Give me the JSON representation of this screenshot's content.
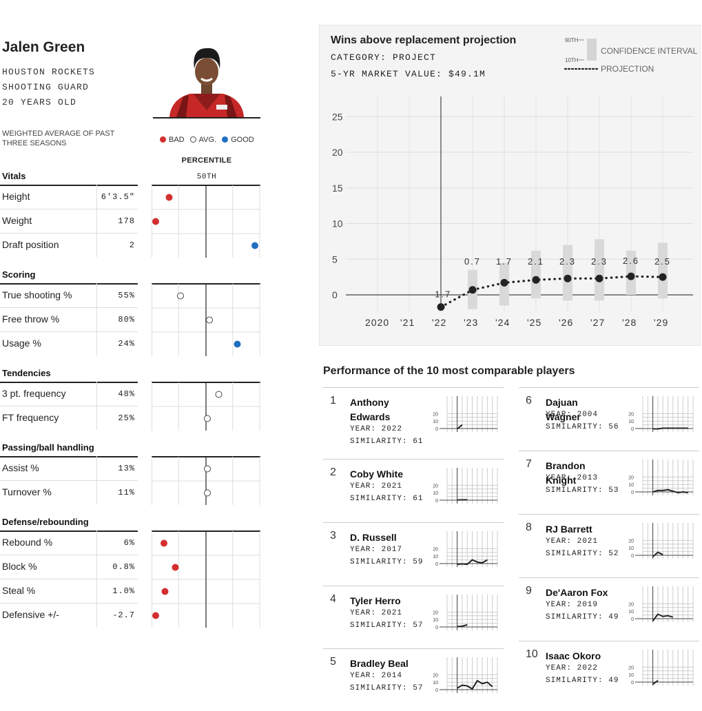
{
  "player": {
    "name": "Jalen Green",
    "team": "HOUSTON ROCKETS",
    "position": "SHOOTING GUARD",
    "age": "20 YEARS OLD"
  },
  "weighted_note": "WEIGHTED AVERAGE OF PAST THREE SEASONS",
  "legend": {
    "bad": "BAD",
    "avg": "AVG.",
    "good": "GOOD"
  },
  "colors": {
    "bad": "#d32f2f",
    "good": "#1f6fc1",
    "avg": "#ffffff",
    "ink": "#222222"
  },
  "percentile_label": "PERCENTILE",
  "fiftieth_label": "50TH",
  "stat_sections": [
    {
      "title": "Vitals",
      "rows": [
        {
          "label": "Height",
          "value": "6'3.5\"",
          "percentile": 15,
          "rating": "bad"
        },
        {
          "label": "Weight",
          "value": "178",
          "percentile": 2,
          "rating": "bad"
        },
        {
          "label": "Draft position",
          "value": "2",
          "percentile": 98,
          "rating": "good"
        }
      ]
    },
    {
      "title": "Scoring",
      "rows": [
        {
          "label": "True shooting %",
          "value": "55%",
          "percentile": 26,
          "rating": "avg"
        },
        {
          "label": "Free throw %",
          "value": "80%",
          "percentile": 54,
          "rating": "avg"
        },
        {
          "label": "Usage %",
          "value": "24%",
          "percentile": 81,
          "rating": "good"
        }
      ]
    },
    {
      "title": "Tendencies",
      "rows": [
        {
          "label": "3 pt. frequency",
          "value": "48%",
          "percentile": 63,
          "rating": "avg"
        },
        {
          "label": "FT frequency",
          "value": "25%",
          "percentile": 52,
          "rating": "avg"
        }
      ]
    },
    {
      "title": "Passing/ball handling",
      "rows": [
        {
          "label": "Assist %",
          "value": "13%",
          "percentile": 52,
          "rating": "avg"
        },
        {
          "label": "Turnover %",
          "value": "11%",
          "percentile": 52,
          "rating": "avg"
        }
      ]
    },
    {
      "title": "Defense/rebounding",
      "rows": [
        {
          "label": "Rebound %",
          "value": "6%",
          "percentile": 10,
          "rating": "bad"
        },
        {
          "label": "Block %",
          "value": "0.8%",
          "percentile": 21,
          "rating": "bad"
        },
        {
          "label": "Steal %",
          "value": "1.0%",
          "percentile": 11,
          "rating": "bad"
        },
        {
          "label": "Defensive +/-",
          "value": "-2.7",
          "percentile": 2,
          "rating": "bad"
        }
      ]
    }
  ],
  "wins": {
    "title": "Wins above replacement projection",
    "category": "CATEGORY: PROJECT",
    "market_value": "5-YR MARKET VALUE: $49.1M",
    "legend_90": "90TH",
    "legend_10": "10TH",
    "legend_ci": "CONFIDENCE INTERVAL",
    "legend_proj": "PROJECTION"
  },
  "chart_data": {
    "type": "line",
    "title": "Wins above replacement projection",
    "x": [
      "2020",
      "'21",
      "'22",
      "'23",
      "'24",
      "'25",
      "'26",
      "'27",
      "'28",
      "'29"
    ],
    "ylim": [
      -2,
      25
    ],
    "yticks": [
      0,
      5,
      10,
      15,
      20,
      25
    ],
    "grid": true,
    "series": [
      {
        "name": "PROJECTION",
        "points": [
          {
            "x": "'22",
            "y": -1.7,
            "label": "-1.7"
          },
          {
            "x": "'23",
            "y": 0.7,
            "label": "0.7"
          },
          {
            "x": "'24",
            "y": 1.7,
            "label": "1.7"
          },
          {
            "x": "'25",
            "y": 2.1,
            "label": "2.1"
          },
          {
            "x": "'26",
            "y": 2.3,
            "label": "2.3"
          },
          {
            "x": "'27",
            "y": 2.3,
            "label": "2.3"
          },
          {
            "x": "'28",
            "y": 2.6,
            "label": "2.6"
          },
          {
            "x": "'29",
            "y": 2.5,
            "label": "2.5"
          }
        ]
      }
    ],
    "confidence_interval": [
      {
        "x": "'23",
        "low": -2,
        "high": 3.5
      },
      {
        "x": "'24",
        "low": -1.5,
        "high": 4.5
      },
      {
        "x": "'25",
        "low": -0.5,
        "high": 6.2
      },
      {
        "x": "'26",
        "low": -0.8,
        "high": 7.0
      },
      {
        "x": "'27",
        "low": -0.8,
        "high": 7.8
      },
      {
        "x": "'28",
        "low": 0,
        "high": 6.2
      },
      {
        "x": "'29",
        "low": -0.5,
        "high": 7.3
      }
    ]
  },
  "comparables_title": "Performance of the 10 most comparable players",
  "comparables": [
    {
      "rank": "1",
      "name": "Anthony Edwards",
      "year": "YEAR: 2022",
      "similarity": "SIMILARITY: 61",
      "values": [
        -0.5,
        5
      ]
    },
    {
      "rank": "2",
      "name": "Coby White",
      "year": "YEAR: 2021",
      "similarity": "SIMILARITY: 61",
      "values": [
        0.3,
        0.5,
        0.6
      ]
    },
    {
      "rank": "3",
      "name": "D. Russell",
      "year": "YEAR: 2017",
      "similarity": "SIMILARITY: 59",
      "values": [
        -1,
        -0.5,
        -1,
        5,
        2,
        1,
        5
      ]
    },
    {
      "rank": "4",
      "name": "Tyler Herro",
      "year": "YEAR: 2021",
      "similarity": "SIMILARITY: 57",
      "values": [
        0.5,
        1,
        3
      ]
    },
    {
      "rank": "5",
      "name": "Bradley Beal",
      "year": "YEAR: 2014",
      "similarity": "SIMILARITY: 57",
      "values": [
        2,
        6,
        5,
        1,
        12,
        8,
        10,
        4
      ]
    },
    {
      "rank": "6",
      "name": "Dajuan Wagner",
      "year": "YEAR: 2004",
      "similarity": "SIMILARITY: 56",
      "values": [
        -0.5,
        -0.5,
        0.5,
        0.5,
        0.5,
        0.5,
        0.5,
        0.5
      ]
    },
    {
      "rank": "7",
      "name": "Brandon Knight",
      "year": "YEAR: 2013",
      "similarity": "SIMILARITY: 53",
      "values": [
        0,
        2,
        2,
        3,
        1,
        -1,
        0,
        -1
      ]
    },
    {
      "rank": "8",
      "name": "RJ Barrett",
      "year": "YEAR: 2021",
      "similarity": "SIMILARITY: 52",
      "values": [
        -2,
        4,
        1
      ]
    },
    {
      "rank": "9",
      "name": "De'Aaron Fox",
      "year": "YEAR: 2019",
      "similarity": "SIMILARITY: 49",
      "values": [
        -3,
        6,
        3,
        4,
        2
      ]
    },
    {
      "rank": "10",
      "name": "Isaac Okoro",
      "year": "YEAR: 2022",
      "similarity": "SIMILARITY: 49",
      "values": [
        -3,
        2
      ]
    }
  ]
}
